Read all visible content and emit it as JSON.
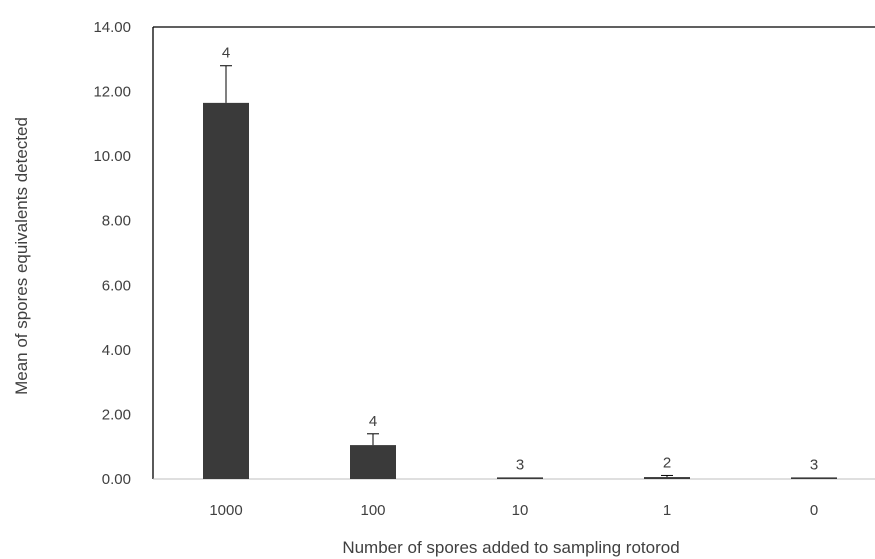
{
  "chart_data": {
    "type": "bar",
    "title": "",
    "xlabel": "Number  of spores added to sampling rotorod",
    "ylabel": "Mean of  spores equivalents detected",
    "categories": [
      "1000",
      "100",
      "10",
      "1",
      "0"
    ],
    "values": [
      11.65,
      1.05,
      0.05,
      0.06,
      0.05
    ],
    "error_plus": [
      1.15,
      0.35,
      0.0,
      0.05,
      0.0
    ],
    "data_labels": [
      "4",
      "4",
      "3",
      "2",
      "3"
    ],
    "ylim": [
      0,
      14
    ],
    "yticks": [
      "0.00",
      "2.00",
      "4.00",
      "6.00",
      "8.00",
      "10.00",
      "12.00",
      "14.00"
    ],
    "grid": false,
    "legend": "none",
    "bar_color": "#3a3a3a",
    "axis_color": "#000000"
  }
}
